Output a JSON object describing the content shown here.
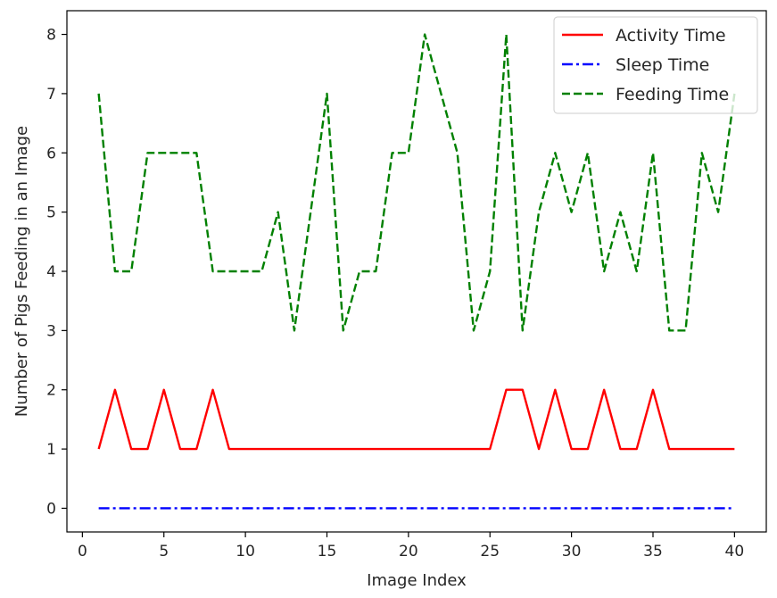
{
  "chart_data": {
    "type": "line",
    "title": "",
    "xlabel": "Image Index",
    "ylabel": "Number of Pigs Feeding in an Image",
    "xlim": [
      -0.95,
      41.95
    ],
    "ylim": [
      -0.4,
      8.4
    ],
    "xticks": [
      0,
      5,
      10,
      15,
      20,
      25,
      30,
      35,
      40
    ],
    "yticks": [
      0,
      1,
      2,
      3,
      4,
      5,
      6,
      7,
      8
    ],
    "grid": false,
    "legend_position": "top-right",
    "x": [
      1,
      2,
      3,
      4,
      5,
      6,
      7,
      8,
      9,
      10,
      11,
      12,
      13,
      14,
      15,
      16,
      17,
      18,
      19,
      20,
      21,
      22,
      23,
      24,
      25,
      26,
      27,
      28,
      29,
      30,
      31,
      32,
      33,
      34,
      35,
      36,
      37,
      38,
      39,
      40
    ],
    "series": [
      {
        "name": "Activity Time",
        "color": "#ff0000",
        "style": "solid",
        "values": [
          1,
          2,
          1,
          1,
          2,
          1,
          1,
          2,
          1,
          1,
          1,
          1,
          1,
          1,
          1,
          1,
          1,
          1,
          1,
          1,
          1,
          1,
          1,
          1,
          1,
          2,
          2,
          1,
          2,
          1,
          1,
          2,
          1,
          1,
          2,
          1,
          1,
          1,
          1,
          1
        ]
      },
      {
        "name": "Sleep Time",
        "color": "#0000ff",
        "style": "dashdot",
        "values": [
          0,
          0,
          0,
          0,
          0,
          0,
          0,
          0,
          0,
          0,
          0,
          0,
          0,
          0,
          0,
          0,
          0,
          0,
          0,
          0,
          0,
          0,
          0,
          0,
          0,
          0,
          0,
          0,
          0,
          0,
          0,
          0,
          0,
          0,
          0,
          0,
          0,
          0,
          0,
          0
        ]
      },
      {
        "name": "Feeding Time",
        "color": "#008000",
        "style": "dashed",
        "values": [
          7,
          4,
          4,
          6,
          6,
          6,
          6,
          4,
          4,
          4,
          4,
          5,
          3,
          5,
          7,
          3,
          4,
          4,
          6,
          6,
          8,
          7,
          6,
          3,
          4,
          8,
          3,
          5,
          6,
          5,
          6,
          4,
          5,
          4,
          6,
          3,
          3,
          6,
          5,
          7
        ]
      }
    ]
  }
}
